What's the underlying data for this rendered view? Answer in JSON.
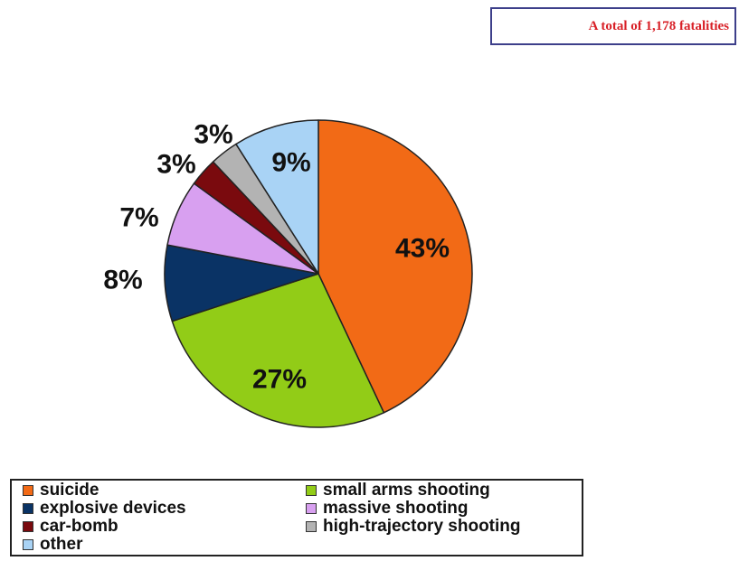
{
  "note": "A total of 1,178 fatalities",
  "chart_data": {
    "type": "pie",
    "title": "",
    "slices": [
      {
        "label": "suicide",
        "value": 43,
        "display": "43%",
        "color": "#f26a16"
      },
      {
        "label": "small arms shooting",
        "value": 27,
        "display": "27%",
        "color": "#92cc17"
      },
      {
        "label": "explosive devices",
        "value": 8,
        "display": "8%",
        "color": "#0a3365"
      },
      {
        "label": "massive shooting",
        "value": 7,
        "display": "7%",
        "color": "#d8a0f0"
      },
      {
        "label": "car-bomb",
        "value": 3,
        "display": "3%",
        "color": "#7a0a0e"
      },
      {
        "label": "high-trajectory shooting",
        "value": 3,
        "display": "3%",
        "color": "#b3b3b3"
      },
      {
        "label": "other",
        "value": 9,
        "display": "9%",
        "color": "#a9d3f5"
      }
    ],
    "legend_placement": "bottom-left"
  }
}
